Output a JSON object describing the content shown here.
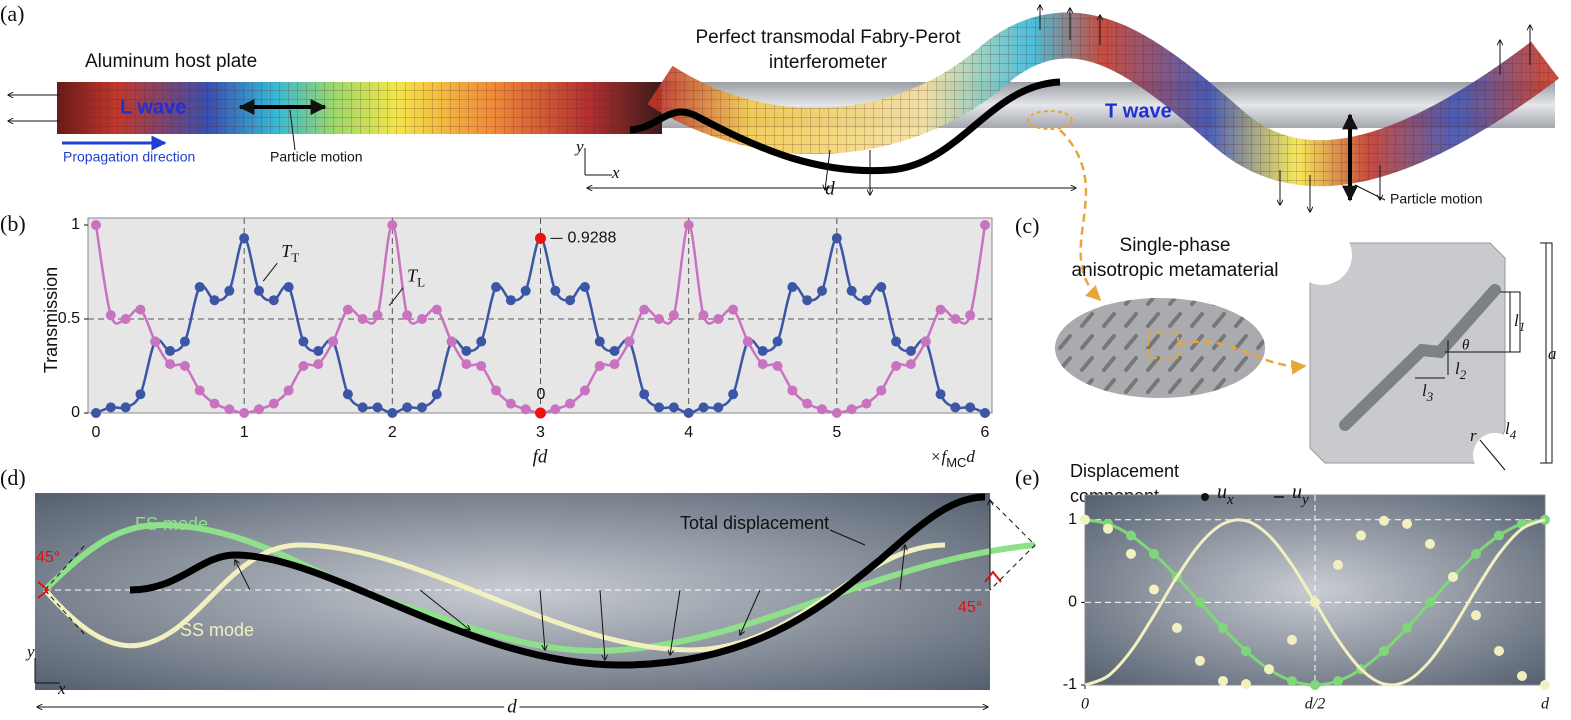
{
  "panels": {
    "a": {
      "label": "(a)",
      "host": "Aluminum host plate",
      "l_wave": "L wave",
      "propagation": "Propagation direction",
      "particle_motion_left": "Particle motion",
      "interferometer_line1": "Perfect transmodal Fabry-Perot",
      "interferometer_line2": "interferometer",
      "t_wave": "T wave",
      "particle_motion_right": "Particle motion",
      "axis_y": "y",
      "axis_x": "x",
      "length": "d"
    },
    "c": {
      "label": "(c)",
      "title_line1": "Single-phase",
      "title_line2": "anisotropic metamaterial",
      "l1": "l",
      "l1_sub": "1",
      "l2": "l",
      "l2_sub": "2",
      "l3": "l",
      "l3_sub": "3",
      "l4": "l",
      "l4_sub": "4",
      "theta": "θ",
      "r": "r",
      "a": "a"
    },
    "d": {
      "label": "(d)",
      "fs": "FS mode",
      "ss": "SS mode",
      "total": "Total displacement",
      "angle_left": "45°",
      "angle_right": "45°",
      "axis_y": "y",
      "axis_x": "x",
      "length": "d"
    }
  },
  "chart_data": [
    {
      "type": "line",
      "panel_label": "(b)",
      "ylabel": "Transmission",
      "xlabel": "fd",
      "x_unit": "×f",
      "x_unit_sub": "MC",
      "x_unit_tail": "d",
      "xlim": [
        0,
        6
      ],
      "ylim": [
        0,
        1
      ],
      "xticks": [
        0,
        1,
        2,
        3,
        4,
        5,
        6
      ],
      "yticks": [
        0,
        0.5,
        1
      ],
      "grid": true,
      "x": [
        0,
        0.1,
        0.2,
        0.3,
        0.4,
        0.5,
        0.6,
        0.7,
        0.8,
        0.9,
        1,
        1.1,
        1.2,
        1.3,
        1.4,
        1.5,
        1.6,
        1.7,
        1.8,
        1.9,
        2,
        2.1,
        2.2,
        2.3,
        2.4,
        2.5,
        2.6,
        2.7,
        2.8,
        2.9,
        3,
        3.1,
        3.2,
        3.3,
        3.4,
        3.5,
        3.6,
        3.7,
        3.8,
        3.9,
        4,
        4.1,
        4.2,
        4.3,
        4.4,
        4.5,
        4.6,
        4.7,
        4.8,
        4.9,
        5,
        5.1,
        5.2,
        5.3,
        5.4,
        5.5,
        5.6,
        5.7,
        5.8,
        5.9,
        6
      ],
      "series": [
        {
          "name": "T",
          "name_sub": "T",
          "color": "#3a56a5",
          "style": "line+dots",
          "values": [
            0,
            0.03,
            0.03,
            0.1,
            0.38,
            0.33,
            0.38,
            0.67,
            0.6,
            0.65,
            0.93,
            0.65,
            0.6,
            0.67,
            0.38,
            0.33,
            0.38,
            0.1,
            0.03,
            0.03,
            0,
            0.03,
            0.03,
            0.1,
            0.38,
            0.33,
            0.38,
            0.67,
            0.6,
            0.65,
            0.93,
            0.65,
            0.6,
            0.67,
            0.38,
            0.33,
            0.38,
            0.1,
            0.03,
            0.03,
            0,
            0.03,
            0.03,
            0.1,
            0.38,
            0.33,
            0.38,
            0.67,
            0.6,
            0.65,
            0.93,
            0.65,
            0.6,
            0.67,
            0.38,
            0.33,
            0.38,
            0.1,
            0.03,
            0.03,
            0
          ]
        },
        {
          "name": "T",
          "name_sub": "L",
          "color": "#c872c0",
          "style": "line+dots",
          "values": [
            1,
            0.52,
            0.5,
            0.55,
            0.38,
            0.26,
            0.25,
            0.12,
            0.05,
            0.02,
            0,
            0.02,
            0.05,
            0.12,
            0.25,
            0.26,
            0.38,
            0.55,
            0.5,
            0.52,
            1,
            0.52,
            0.5,
            0.55,
            0.38,
            0.26,
            0.25,
            0.12,
            0.05,
            0.02,
            0,
            0.02,
            0.05,
            0.12,
            0.25,
            0.26,
            0.38,
            0.55,
            0.5,
            0.52,
            1,
            0.52,
            0.5,
            0.55,
            0.38,
            0.26,
            0.25,
            0.12,
            0.05,
            0.02,
            0,
            0.02,
            0.05,
            0.12,
            0.25,
            0.26,
            0.38,
            0.55,
            0.5,
            0.52,
            1
          ]
        }
      ],
      "highlights": [
        {
          "x": 3,
          "value": 0.9288
        },
        {
          "x": 3,
          "value": 0
        }
      ]
    },
    {
      "type": "line",
      "panel_label": "(e)",
      "title_line1": "Displacement",
      "title_line2": "component",
      "legend": [
        {
          "marker": "dot",
          "name": "u",
          "sub": "x"
        },
        {
          "marker": "line",
          "name": "u",
          "sub": "y"
        }
      ],
      "xlim": [
        0,
        1
      ],
      "ylim": [
        -1,
        1.3
      ],
      "xticks": [
        {
          "value": 0,
          "label": "0"
        },
        {
          "value": 0.5,
          "label": "d/2"
        },
        {
          "value": 1,
          "label": "d"
        }
      ],
      "yticks": [
        -1,
        0,
        1
      ],
      "grid": true,
      "x": [
        0,
        0.05,
        0.1,
        0.15,
        0.2,
        0.25,
        0.3,
        0.35,
        0.4,
        0.45,
        0.5,
        0.55,
        0.6,
        0.65,
        0.7,
        0.75,
        0.8,
        0.85,
        0.9,
        0.95,
        1
      ],
      "series": [
        {
          "color": "#7fd77a",
          "style": "line+dots",
          "values": [
            1,
            0.951,
            0.809,
            0.588,
            0.309,
            0,
            -0.309,
            -0.588,
            -0.809,
            -0.951,
            -1,
            -0.951,
            -0.809,
            -0.588,
            -0.309,
            0,
            0.309,
            0.588,
            0.809,
            0.951,
            1
          ]
        },
        {
          "color": "#f3f0c0",
          "style": "dots",
          "values": [
            1,
            0.891,
            0.588,
            0.156,
            -0.309,
            -0.707,
            -0.951,
            -0.988,
            -0.809,
            -0.454,
            0,
            0.454,
            0.809,
            0.988,
            0.951,
            0.707,
            0.309,
            -0.156,
            -0.588,
            -0.891,
            -1
          ]
        },
        {
          "color": "#f3f0c0",
          "style": "line",
          "values": [
            -1,
            -0.891,
            -0.588,
            -0.156,
            0.309,
            0.707,
            0.951,
            0.988,
            0.809,
            0.454,
            0,
            -0.454,
            -0.809,
            -0.988,
            -0.951,
            -0.707,
            -0.309,
            0.156,
            0.588,
            0.891,
            1
          ]
        }
      ]
    }
  ]
}
